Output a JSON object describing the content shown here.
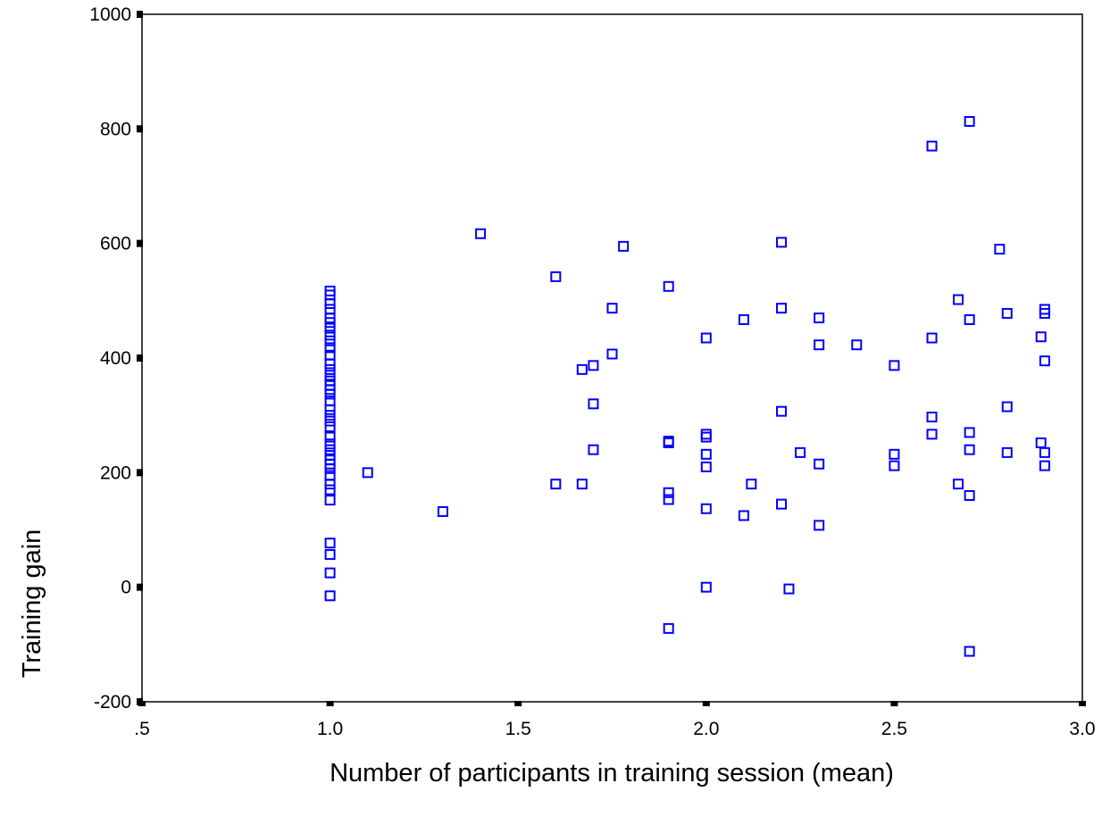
{
  "chart_data": {
    "type": "scatter",
    "title": "",
    "xlabel": "Number of participants in training session (mean)",
    "ylabel": "Training gain",
    "xlim": [
      0.5,
      3.0
    ],
    "ylim": [
      -200,
      1000
    ],
    "x_ticks": [
      0.5,
      1.0,
      1.5,
      2.0,
      2.5,
      3.0
    ],
    "x_tick_labels": [
      ".5",
      "1.0",
      "1.5",
      "2.0",
      "2.5",
      "3.0"
    ],
    "y_ticks": [
      -200,
      0,
      200,
      400,
      600,
      800,
      1000
    ],
    "y_tick_labels": [
      "-200",
      "0",
      "200",
      "400",
      "600",
      "800",
      "1000"
    ],
    "grid": false,
    "legend": "none",
    "marker": "open-square",
    "marker_color": "#0000ff",
    "series": [
      {
        "points": [
          [
            1.0,
            517
          ],
          [
            1.0,
            510
          ],
          [
            1.0,
            495
          ],
          [
            1.0,
            485
          ],
          [
            1.0,
            470
          ],
          [
            1.0,
            462
          ],
          [
            1.0,
            452
          ],
          [
            1.0,
            440
          ],
          [
            1.0,
            430
          ],
          [
            1.0,
            418
          ],
          [
            1.0,
            405
          ],
          [
            1.0,
            390
          ],
          [
            1.0,
            380
          ],
          [
            1.0,
            370
          ],
          [
            1.0,
            360
          ],
          [
            1.0,
            352
          ],
          [
            1.0,
            345
          ],
          [
            1.0,
            337
          ],
          [
            1.0,
            325
          ],
          [
            1.0,
            310
          ],
          [
            1.0,
            300
          ],
          [
            1.0,
            290
          ],
          [
            1.0,
            280
          ],
          [
            1.0,
            262
          ],
          [
            1.0,
            250
          ],
          [
            1.0,
            240
          ],
          [
            1.0,
            230
          ],
          [
            1.0,
            222
          ],
          [
            1.0,
            215
          ],
          [
            1.0,
            207
          ],
          [
            1.0,
            195
          ],
          [
            1.0,
            180
          ],
          [
            1.0,
            170
          ],
          [
            1.0,
            152
          ],
          [
            1.0,
            77
          ],
          [
            1.0,
            57
          ],
          [
            1.0,
            25
          ],
          [
            1.0,
            -15
          ],
          [
            1.1,
            200
          ],
          [
            1.3,
            132
          ],
          [
            1.4,
            617
          ],
          [
            1.6,
            542
          ],
          [
            1.6,
            180
          ],
          [
            1.67,
            380
          ],
          [
            1.67,
            180
          ],
          [
            1.7,
            387
          ],
          [
            1.7,
            320
          ],
          [
            1.7,
            240
          ],
          [
            1.75,
            487
          ],
          [
            1.75,
            407
          ],
          [
            1.78,
            595
          ],
          [
            1.9,
            525
          ],
          [
            1.9,
            255
          ],
          [
            1.9,
            252
          ],
          [
            1.9,
            165
          ],
          [
            1.9,
            153
          ],
          [
            1.9,
            -72
          ],
          [
            2.0,
            435
          ],
          [
            2.0,
            267
          ],
          [
            2.0,
            262
          ],
          [
            2.0,
            232
          ],
          [
            2.0,
            210
          ],
          [
            2.0,
            137
          ],
          [
            2.0,
            0
          ],
          [
            2.1,
            467
          ],
          [
            2.1,
            125
          ],
          [
            2.12,
            180
          ],
          [
            2.2,
            602
          ],
          [
            2.2,
            487
          ],
          [
            2.2,
            307
          ],
          [
            2.2,
            145
          ],
          [
            2.22,
            -3
          ],
          [
            2.25,
            235
          ],
          [
            2.3,
            470
          ],
          [
            2.3,
            423
          ],
          [
            2.3,
            215
          ],
          [
            2.3,
            108
          ],
          [
            2.4,
            423
          ],
          [
            2.5,
            387
          ],
          [
            2.5,
            232
          ],
          [
            2.5,
            212
          ],
          [
            2.6,
            770
          ],
          [
            2.6,
            435
          ],
          [
            2.6,
            297
          ],
          [
            2.6,
            267
          ],
          [
            2.67,
            502
          ],
          [
            2.67,
            180
          ],
          [
            2.7,
            813
          ],
          [
            2.7,
            467
          ],
          [
            2.7,
            270
          ],
          [
            2.7,
            240
          ],
          [
            2.7,
            160
          ],
          [
            2.7,
            -112
          ],
          [
            2.78,
            590
          ],
          [
            2.8,
            478
          ],
          [
            2.8,
            315
          ],
          [
            2.8,
            235
          ],
          [
            2.89,
            437
          ],
          [
            2.89,
            252
          ],
          [
            2.9,
            485
          ],
          [
            2.9,
            478
          ],
          [
            2.9,
            395
          ],
          [
            2.9,
            235
          ],
          [
            2.9,
            212
          ]
        ]
      }
    ]
  }
}
